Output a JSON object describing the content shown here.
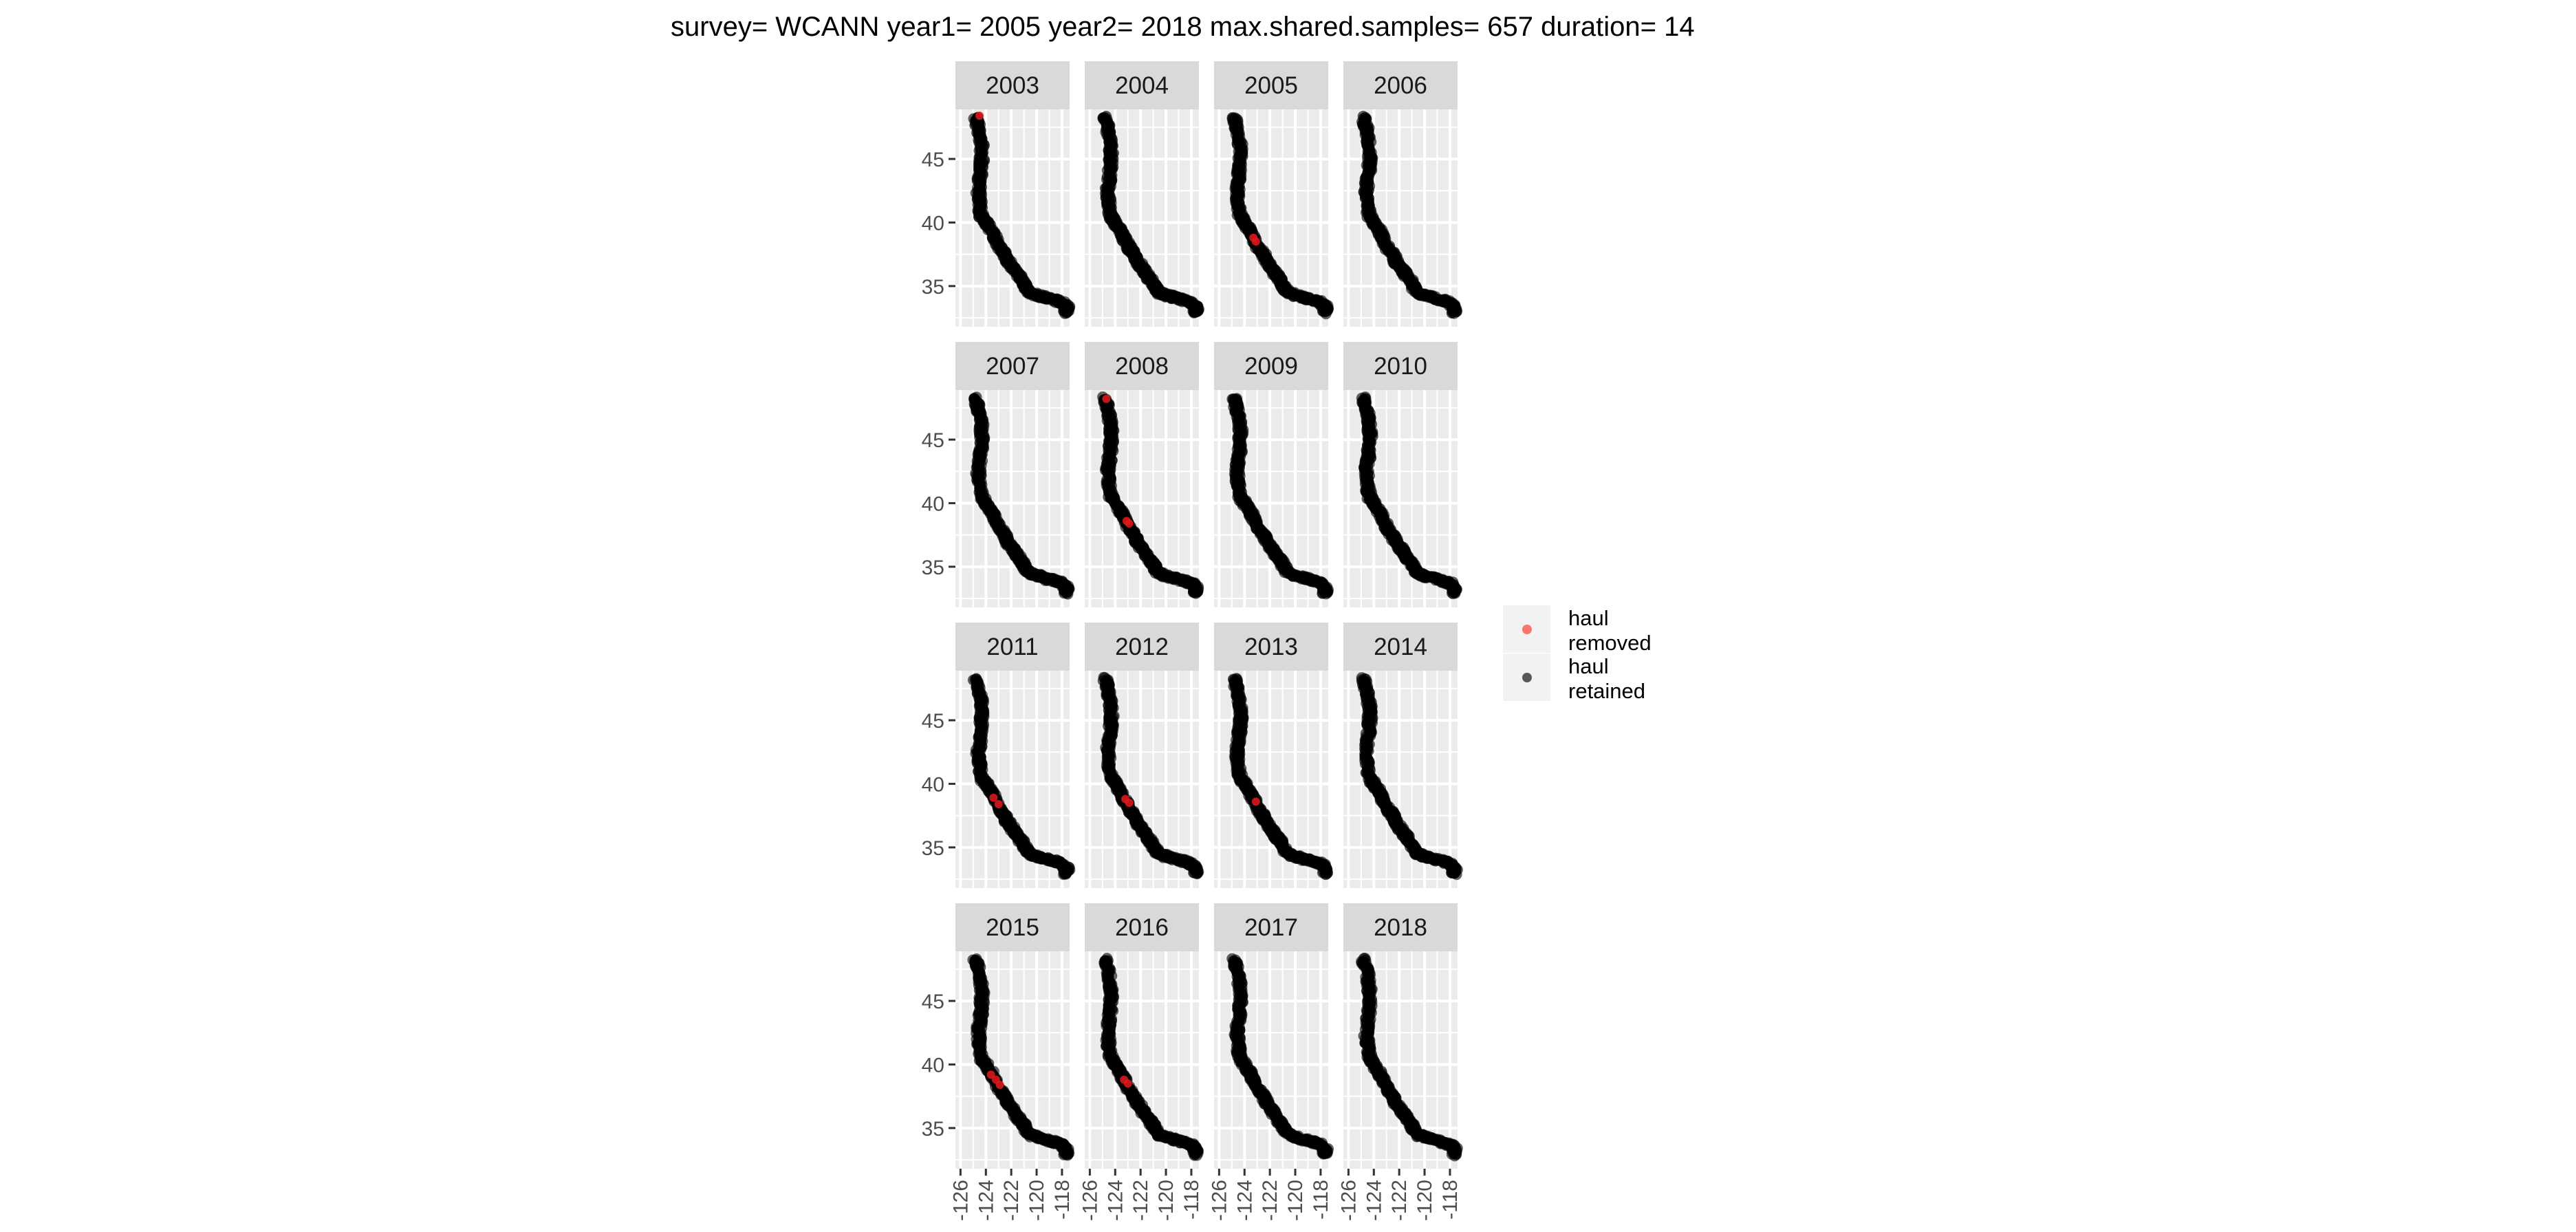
{
  "chart_data": {
    "type": "scatter",
    "title": "survey= WCANN year1= 2005 year2= 2018 max.shared.samples= 657 duration= 14",
    "facet_rows": 4,
    "facet_cols": 4,
    "panels": [
      "2003",
      "2004",
      "2005",
      "2006",
      "2007",
      "2008",
      "2009",
      "2010",
      "2011",
      "2012",
      "2013",
      "2014",
      "2015",
      "2016",
      "2017",
      "2018"
    ],
    "xlim": [
      -126.4,
      -117.4
    ],
    "ylim": [
      31.8,
      48.9
    ],
    "x_ticks": [
      -126,
      -124,
      -122,
      -120,
      -118
    ],
    "x_tick_labels": [
      "-126",
      "-124",
      "-122",
      "-120",
      "-118"
    ],
    "y_ticks": [
      35,
      40,
      45
    ],
    "y_tick_labels": [
      "35",
      "40",
      "45"
    ],
    "coastline_track": [
      [
        -124.8,
        48.3
      ],
      [
        -124.6,
        47.5
      ],
      [
        -124.4,
        46.5
      ],
      [
        -124.3,
        45.5
      ],
      [
        -124.35,
        44.5
      ],
      [
        -124.45,
        43.5
      ],
      [
        -124.6,
        42.5
      ],
      [
        -124.5,
        41.5
      ],
      [
        -124.35,
        40.5
      ],
      [
        -124.0,
        40.0
      ],
      [
        -123.6,
        39.4
      ],
      [
        -123.3,
        38.8
      ],
      [
        -122.9,
        38.0
      ],
      [
        -122.5,
        37.5
      ],
      [
        -122.3,
        37.0
      ],
      [
        -121.9,
        36.5
      ],
      [
        -121.6,
        36.0
      ],
      [
        -121.2,
        35.5
      ],
      [
        -120.9,
        35.0
      ],
      [
        -120.6,
        34.5
      ],
      [
        -120.0,
        34.3
      ],
      [
        -119.3,
        34.1
      ],
      [
        -118.6,
        33.9
      ],
      [
        -118.0,
        33.7
      ],
      [
        -117.6,
        33.3
      ],
      [
        -117.7,
        32.9
      ]
    ],
    "removed_hauls": {
      "2003": [
        [
          -124.5,
          48.4
        ]
      ],
      "2005": [
        [
          -123.3,
          38.8
        ],
        [
          -123.1,
          38.5
        ]
      ],
      "2008": [
        [
          -124.7,
          48.2
        ],
        [
          -123.1,
          38.6
        ],
        [
          -122.9,
          38.4
        ]
      ],
      "2011": [
        [
          -123.4,
          38.9
        ],
        [
          -123.0,
          38.4
        ]
      ],
      "2012": [
        [
          -123.2,
          38.8
        ],
        [
          -122.9,
          38.5
        ]
      ],
      "2013": [
        [
          -123.1,
          38.6
        ]
      ],
      "2015": [
        [
          -123.6,
          39.2
        ],
        [
          -123.2,
          38.8
        ],
        [
          -122.9,
          38.4
        ]
      ],
      "2016": [
        [
          -123.3,
          38.8
        ],
        [
          -123.0,
          38.5
        ]
      ]
    },
    "series": [
      {
        "name": "haul\nremoved",
        "color": "#f8766d"
      },
      {
        "name": "haul\nretained",
        "color": "#595959"
      }
    ],
    "legend": {
      "position": "right",
      "items": [
        {
          "line1": "haul",
          "line2": "removed",
          "color": "#f8766d"
        },
        {
          "line1": "haul",
          "line2": "retained",
          "color": "#595959"
        }
      ]
    },
    "grid": true,
    "colors": {
      "panel_background": "#ebebeb",
      "gridline": "#ffffff",
      "strip_background": "#d9d9d9",
      "retained_point": "#000000",
      "removed_point": "#e41a1c"
    }
  }
}
